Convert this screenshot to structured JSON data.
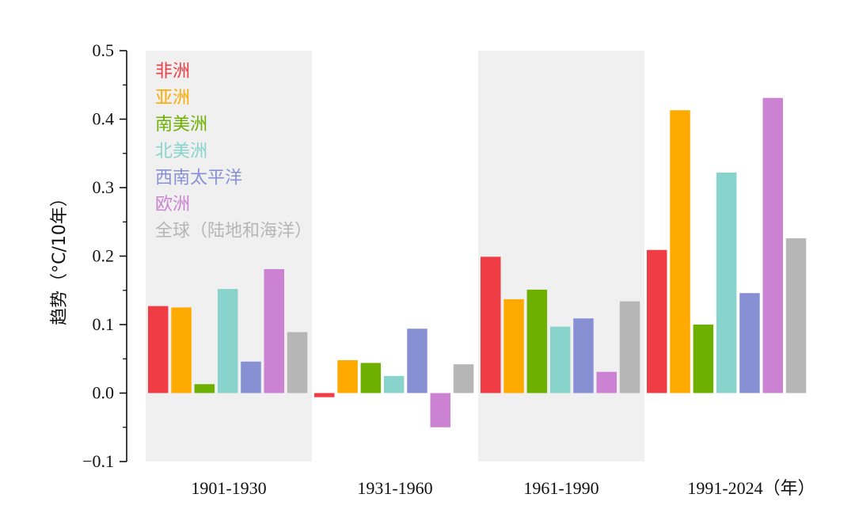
{
  "chart_data": {
    "type": "bar",
    "ylabel": "趋势（°C/10年）",
    "ylim": [
      -0.1,
      0.5
    ],
    "yticks": [
      "−0.1",
      "0.0",
      "0.1",
      "0.2",
      "0.3",
      "0.4",
      "0.5"
    ],
    "ytick_values": [
      -0.1,
      0.0,
      0.1,
      0.2,
      0.3,
      0.4,
      0.5
    ],
    "categories": [
      "1901-1930",
      "1931-1960",
      "1961-1990",
      "1991-2024（年）"
    ],
    "shaded_categories": [
      0,
      2
    ],
    "grid": false,
    "legend_position": "top-left",
    "series": [
      {
        "name": "非洲",
        "color": "#f03c45",
        "values": [
          0.127,
          -0.006,
          0.199,
          0.209
        ]
      },
      {
        "name": "亚洲",
        "color": "#ffaa00",
        "values": [
          0.125,
          0.048,
          0.137,
          0.413
        ]
      },
      {
        "name": "南美洲",
        "color": "#6db000",
        "values": [
          0.013,
          0.044,
          0.151,
          0.1
        ]
      },
      {
        "name": "北美洲",
        "color": "#88d3cc",
        "values": [
          0.152,
          0.025,
          0.097,
          0.322
        ]
      },
      {
        "name": "西南太平洋",
        "color": "#8890d4",
        "values": [
          0.046,
          0.094,
          0.109,
          0.146
        ]
      },
      {
        "name": "欧洲",
        "color": "#cc82d2",
        "values": [
          0.181,
          -0.05,
          0.031,
          0.431
        ]
      },
      {
        "name": "全球（陆地和海洋）",
        "color": "#b6b6b6",
        "values": [
          0.089,
          0.042,
          0.134,
          0.226
        ]
      }
    ]
  }
}
